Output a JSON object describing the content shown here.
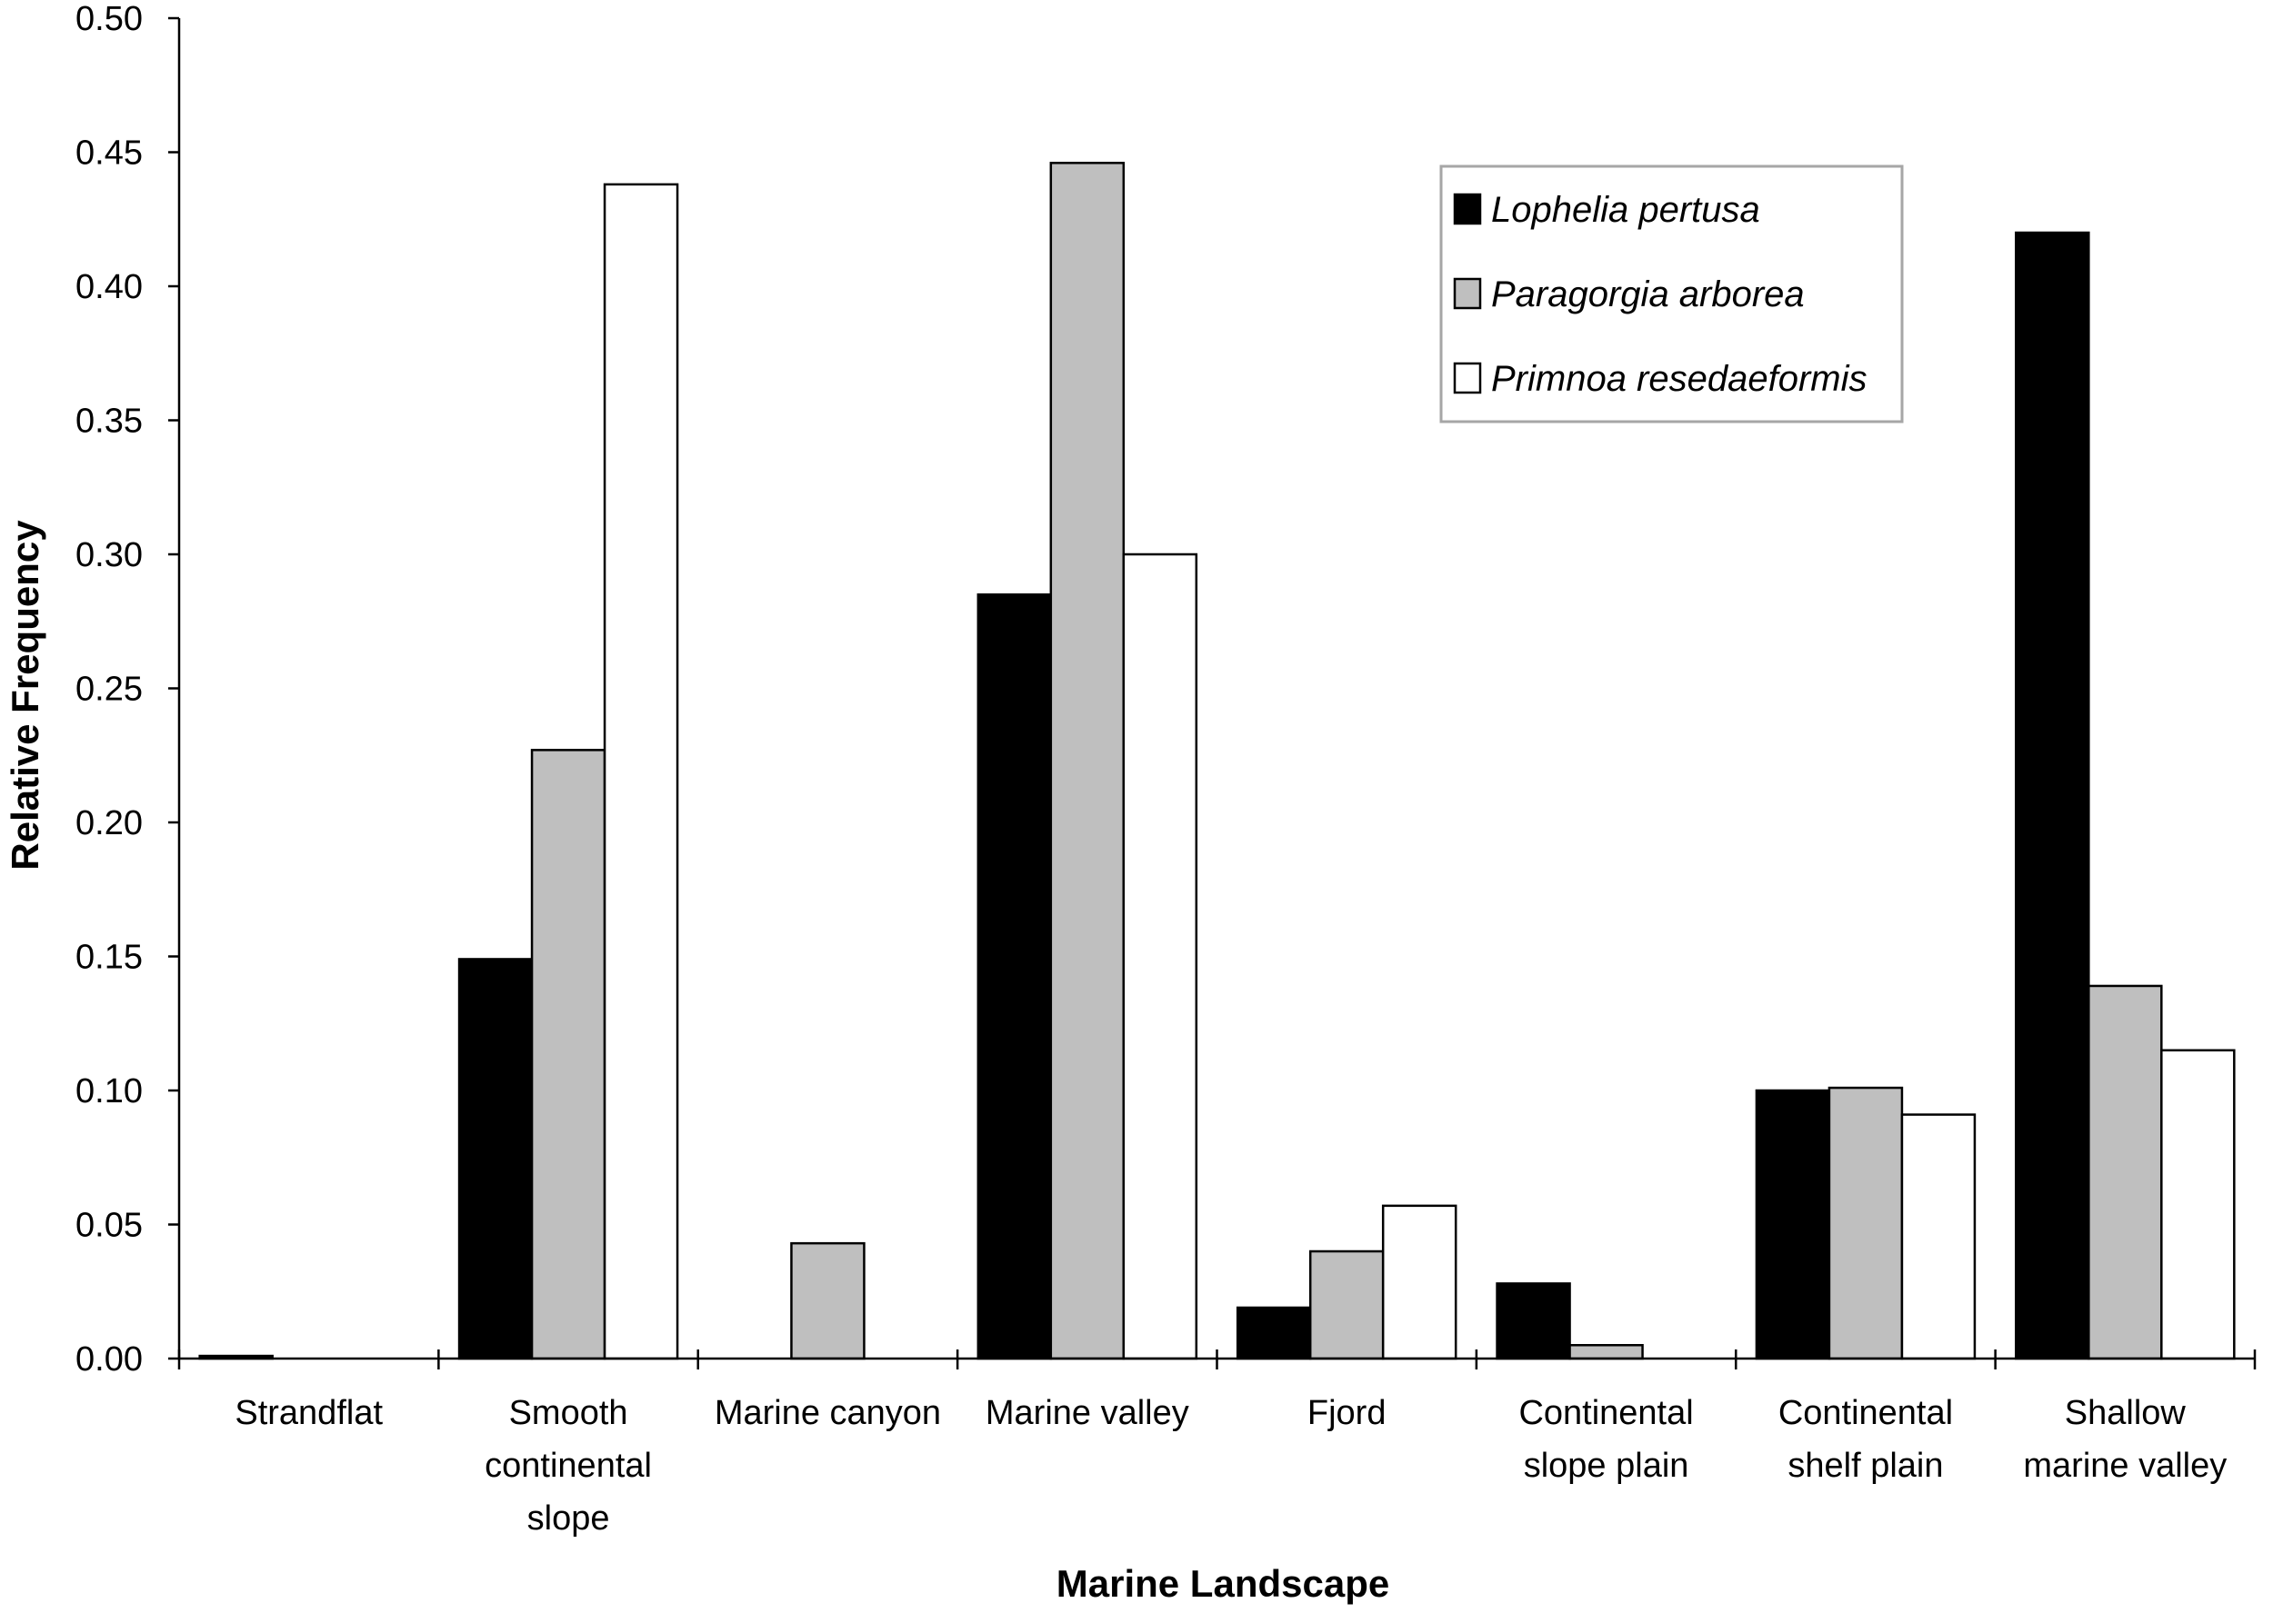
{
  "chart_data": {
    "type": "bar",
    "xlabel": "Marine Landscape",
    "ylabel": "Relative Frequency",
    "ylim": [
      0,
      0.5
    ],
    "yticks": [
      "0.00",
      "0.05",
      "0.10",
      "0.15",
      "0.20",
      "0.25",
      "0.30",
      "0.35",
      "0.40",
      "0.45",
      "0.50"
    ],
    "categories": [
      [
        "Strandflat"
      ],
      [
        "Smooth",
        "continental",
        "slope"
      ],
      [
        "Marine canyon"
      ],
      [
        "Marine valley"
      ],
      [
        "Fjord"
      ],
      [
        "Continental",
        "slope plain"
      ],
      [
        "Continental",
        "shelf plain"
      ],
      [
        "Shallow",
        "marine valley"
      ]
    ],
    "series": [
      {
        "name": "Lophelia pertusa",
        "color": "#000000",
        "values": [
          0.001,
          0.149,
          0.0,
          0.285,
          0.019,
          0.028,
          0.1,
          0.42
        ]
      },
      {
        "name": "Paragorgia arborea",
        "color": "#bfbfbf",
        "values": [
          0.0,
          0.227,
          0.043,
          0.446,
          0.04,
          0.005,
          0.101,
          0.139
        ]
      },
      {
        "name": "Primnoa resedaeformis",
        "color": "#ffffff",
        "values": [
          0.0,
          0.438,
          0.0,
          0.3,
          0.057,
          0.0,
          0.091,
          0.115
        ]
      }
    ],
    "legend_position": "top-right",
    "grid": false
  }
}
